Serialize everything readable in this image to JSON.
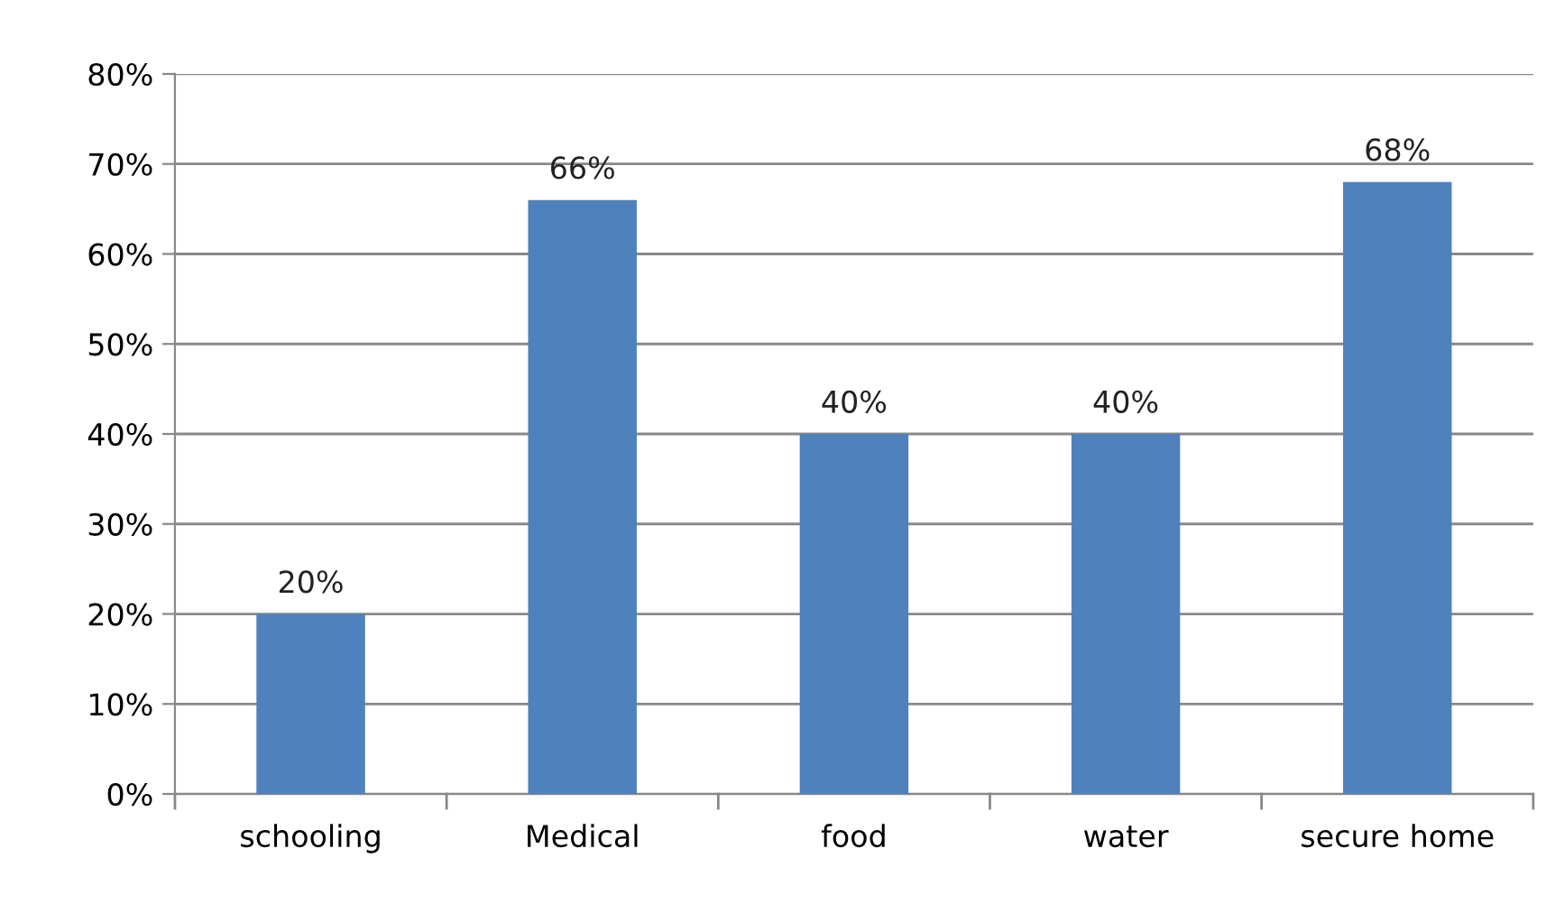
{
  "chart_data": {
    "type": "bar",
    "categories": [
      "schooling",
      "Medical",
      "food",
      "water",
      "secure home"
    ],
    "values": [
      20,
      66,
      40,
      40,
      68
    ],
    "color": "#4f81bd",
    "value_labels": [
      "20%",
      "66%",
      "40%",
      "40%",
      "68%"
    ],
    "ylim": [
      0,
      80
    ],
    "yticks": [
      {
        "value": 0,
        "label": "0%"
      },
      {
        "value": 10,
        "label": "10%"
      },
      {
        "value": 20,
        "label": "20%"
      },
      {
        "value": 30,
        "label": "30%"
      },
      {
        "value": 40,
        "label": "40%"
      },
      {
        "value": 50,
        "label": "50%"
      },
      {
        "value": 60,
        "label": "60%"
      },
      {
        "value": 70,
        "label": "70%"
      },
      {
        "value": 80,
        "label": "80%"
      }
    ],
    "grid": "y"
  }
}
